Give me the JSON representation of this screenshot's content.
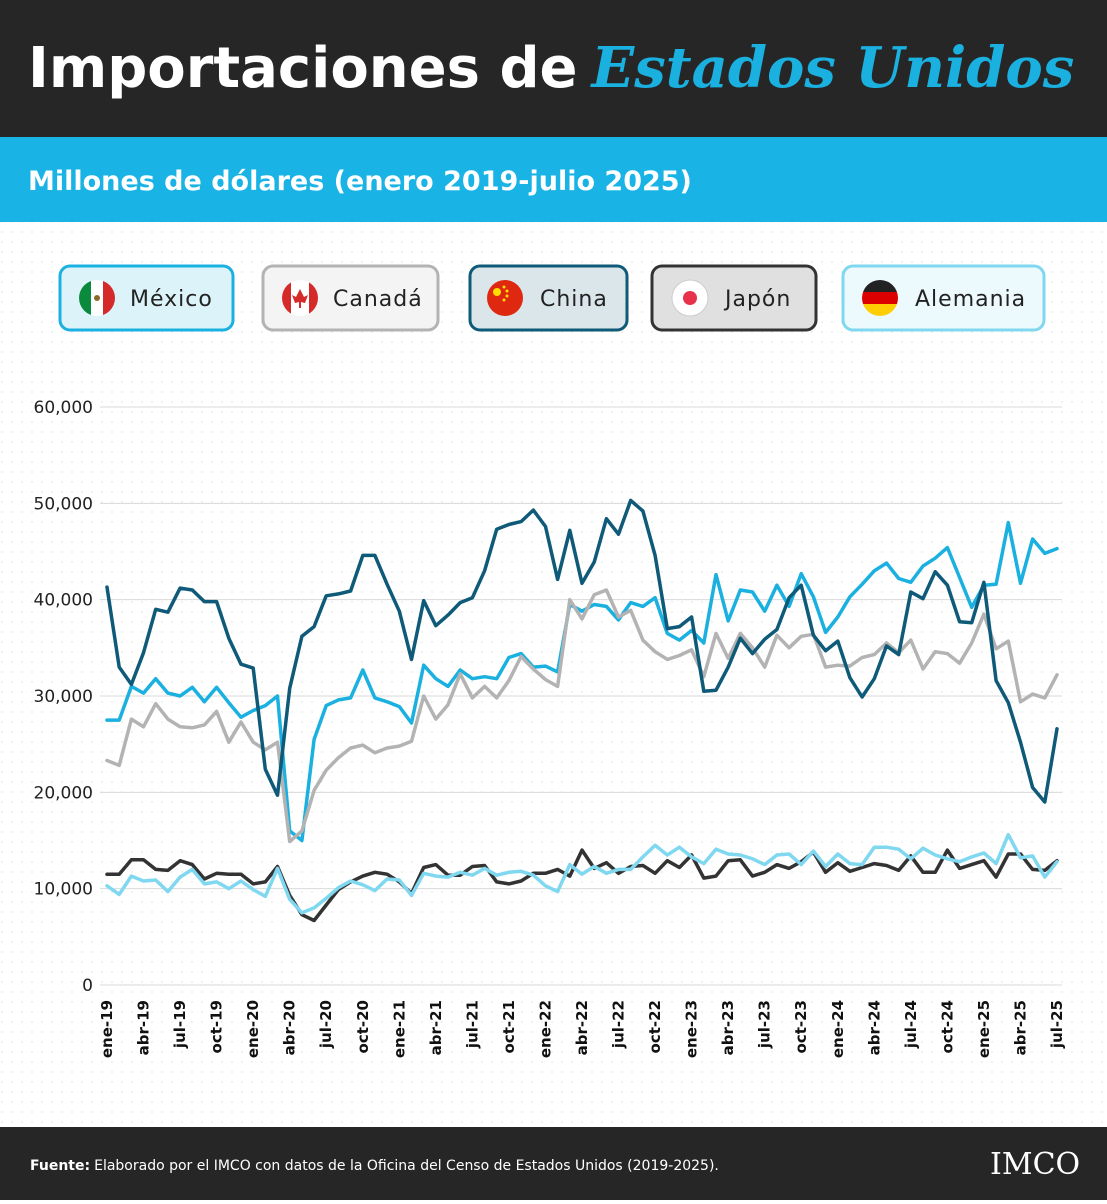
{
  "title": {
    "main": "Importaciones de",
    "highlight": "Estados Unidos"
  },
  "subtitle": "Millones de dólares (enero 2019-julio 2025)",
  "footer": {
    "source_label": "Fuente:",
    "source": "Elaborado por el IMCO con datos de la Oficina del Censo de Estados Unidos (2019-2025).",
    "logo": "IMCO"
  },
  "chart_data": {
    "type": "line",
    "grid": true,
    "categories": [
      "ene-19",
      null,
      null,
      "abr-19",
      null,
      null,
      "jul-19",
      null,
      null,
      "oct-19",
      null,
      null,
      "ene-20",
      null,
      null,
      "abr-20",
      null,
      null,
      "jul-20",
      null,
      null,
      "oct-20",
      null,
      null,
      "ene-21",
      null,
      null,
      "abr-21",
      null,
      null,
      "jul-21",
      null,
      null,
      "oct-21",
      null,
      null,
      "ene-22",
      null,
      null,
      "abr-22",
      null,
      null,
      "jul-22",
      null,
      null,
      "oct-22",
      null,
      null,
      "ene-23",
      null,
      null,
      "abr-23",
      null,
      null,
      "jul-23",
      null,
      null,
      "oct-23",
      null,
      null,
      "ene-24",
      null,
      null,
      "abr-24",
      null,
      null,
      "jul-24",
      null,
      null,
      "oct-24",
      null,
      null,
      "ene-25",
      null,
      null,
      "abr-25",
      null,
      null,
      "jul-25"
    ],
    "ylim": [
      0,
      60000
    ],
    "yticks": [
      0,
      {
        "value": 10000,
        "label": "10,000"
      },
      {
        "value": 20000,
        "label": "20,000"
      },
      {
        "value": 30000,
        "label": "30,000"
      },
      {
        "value": 40000,
        "label": "40,000"
      },
      {
        "value": 50000,
        "label": "50,000"
      },
      {
        "value": 60000,
        "label": "60,000"
      }
    ],
    "series": [
      {
        "name": "México",
        "color": "#1ab0e0",
        "values": [
          27500,
          27500,
          31000,
          30300,
          31800,
          30300,
          30000,
          30900,
          29400,
          30900,
          29300,
          27800,
          28500,
          29000,
          30000,
          16000,
          15000,
          25500,
          29000,
          29600,
          29800,
          32700,
          29800,
          29400,
          28900,
          27200,
          33200,
          31800,
          31000,
          32700,
          31800,
          32000,
          31800,
          34000,
          34400,
          33000,
          33100,
          32500,
          39500,
          38800,
          39500,
          39300,
          37900,
          39700,
          39300,
          40200,
          36500,
          35800,
          36800,
          35500,
          42600,
          37800,
          41000,
          40800,
          38800,
          41500,
          39300,
          42700,
          40300,
          36600,
          38200,
          40300,
          41600,
          43000,
          43800,
          42200,
          41800,
          43500,
          44300,
          45400,
          42300,
          39200,
          41500,
          41600,
          48000,
          41700,
          46300,
          44800,
          45300
        ]
      },
      {
        "name": "Canadá",
        "color": "#b3b3b3",
        "values": [
          23300,
          22800,
          27600,
          26800,
          29200,
          27600,
          26800,
          26700,
          27000,
          28400,
          25200,
          27300,
          25200,
          24400,
          25200,
          14900,
          16000,
          20200,
          22300,
          23600,
          24600,
          24900,
          24100,
          24600,
          24800,
          25300,
          30000,
          27600,
          29100,
          32300,
          29800,
          31000,
          29800,
          31600,
          34100,
          32800,
          31700,
          31000,
          40000,
          38000,
          40500,
          41000,
          38200,
          38900,
          35800,
          34600,
          33800,
          34200,
          34800,
          32000,
          36500,
          33900,
          36500,
          35000,
          33000,
          36300,
          35000,
          36200,
          36400,
          33000,
          33200,
          33100,
          34000,
          34300,
          35500,
          34500,
          35800,
          32800,
          34600,
          34400,
          33400,
          35500,
          38500,
          34900,
          35700,
          29400,
          30200,
          29800,
          32200
        ]
      },
      {
        "name": "China",
        "color": "#0e5a78",
        "values": [
          41300,
          33000,
          31200,
          34500,
          39000,
          38700,
          41200,
          41000,
          39800,
          39800,
          36000,
          33300,
          32900,
          22400,
          19700,
          30800,
          36200,
          37200,
          40400,
          40600,
          40900,
          44600,
          44600,
          41600,
          38800,
          33800,
          39900,
          37300,
          38400,
          39700,
          40200,
          43000,
          47300,
          47800,
          48100,
          49300,
          47600,
          42100,
          47200,
          41700,
          43900,
          48400,
          46800,
          50300,
          49200,
          44600,
          37000,
          37200,
          38200,
          30500,
          30600,
          33000,
          36000,
          34400,
          35900,
          36900,
          40200,
          41500,
          36300,
          34700,
          35700,
          31900,
          29900,
          31800,
          35200,
          34300,
          40800,
          40100,
          42900,
          41500,
          37700,
          37600,
          41800,
          31600,
          29300,
          25200,
          20500,
          19000,
          26600
        ]
      },
      {
        "name": "Japón",
        "color": "#333333",
        "values": [
          11500,
          11500,
          13000,
          13000,
          12000,
          11900,
          12900,
          12500,
          11000,
          11600,
          11500,
          11500,
          10500,
          10700,
          12300,
          9300,
          7300,
          6700,
          8300,
          9900,
          10700,
          11300,
          11700,
          11500,
          10700,
          9500,
          12200,
          12500,
          11400,
          11400,
          12300,
          12400,
          10700,
          10500,
          10800,
          11600,
          11600,
          12000,
          11300,
          14000,
          12100,
          12700,
          11600,
          12300,
          12400,
          11600,
          12900,
          12200,
          13500,
          11100,
          11300,
          12900,
          13000,
          11300,
          11700,
          12500,
          12100,
          12800,
          13800,
          11700,
          12700,
          11800,
          12200,
          12600,
          12400,
          11900,
          13400,
          11700,
          11700,
          14000,
          12100,
          12500,
          12900,
          11200,
          13600,
          13600,
          12000,
          11900,
          12900
        ]
      },
      {
        "name": "Alemania",
        "color": "#7fd8f0",
        "values": [
          10300,
          9400,
          11300,
          10800,
          10900,
          9700,
          11200,
          12000,
          10500,
          10700,
          10000,
          10800,
          9900,
          9200,
          12100,
          8900,
          7500,
          8000,
          9000,
          10100,
          10800,
          10400,
          9800,
          11000,
          10900,
          9300,
          11600,
          11300,
          11200,
          11700,
          11400,
          12100,
          11400,
          11700,
          11800,
          11400,
          10300,
          9700,
          12500,
          11500,
          12300,
          11600,
          12000,
          12000,
          13300,
          14500,
          13500,
          14300,
          13300,
          12600,
          14100,
          13600,
          13500,
          13100,
          12500,
          13500,
          13600,
          12500,
          13900,
          12300,
          13600,
          12600,
          12500,
          14300,
          14300,
          14100,
          13100,
          14200,
          13500,
          13100,
          12800,
          13300,
          13700,
          12600,
          15600,
          13200,
          13400,
          11200,
          12800
        ]
      }
    ]
  }
}
